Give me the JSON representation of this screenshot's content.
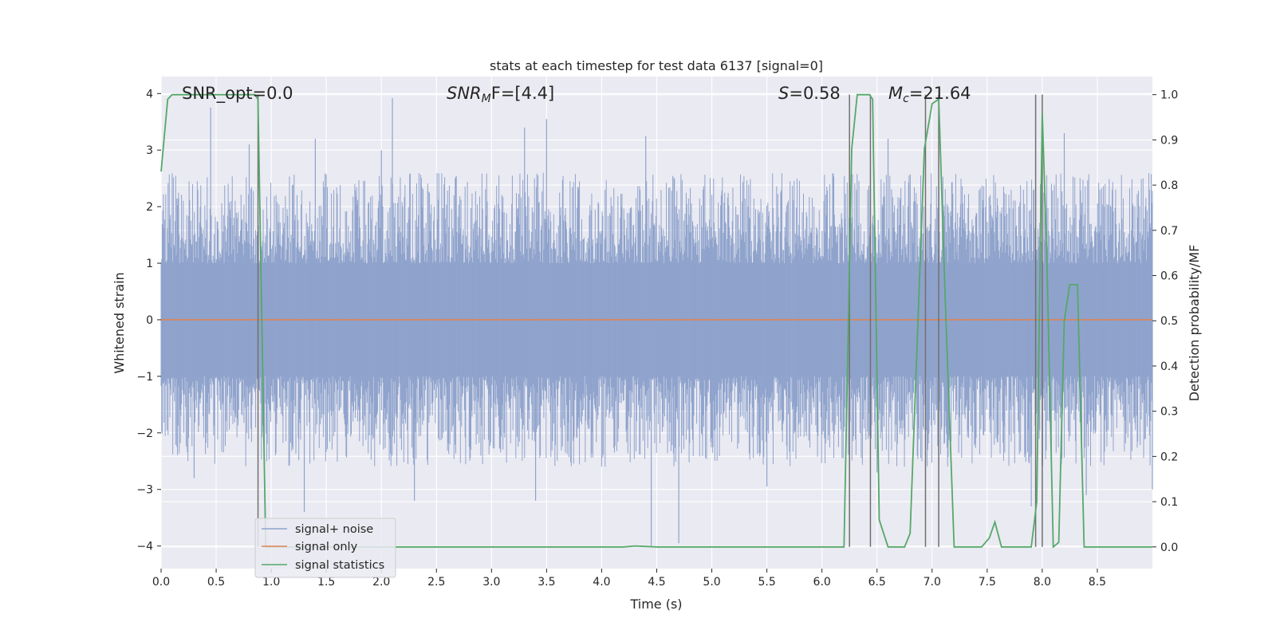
{
  "chart_data": {
    "type": "line",
    "title": "stats at each timestep for test data 6137 [signal=0]",
    "xlabel": "Time (s)",
    "ylabel": "Whitened strain",
    "y2label": "Detection probability/MF",
    "xlim": [
      0,
      9.0
    ],
    "ylim": [
      -4.4,
      4.3
    ],
    "y2lim": [
      -0.048,
      1.04
    ],
    "x_ticks": [
      0.0,
      0.5,
      1.0,
      1.5,
      2.0,
      2.5,
      3.0,
      3.5,
      4.0,
      4.5,
      5.0,
      5.5,
      6.0,
      6.5,
      7.0,
      7.5,
      8.0,
      8.5
    ],
    "x_tick_labels": [
      "0.0",
      "0.5",
      "1.0",
      "1.5",
      "2.0",
      "2.5",
      "3.0",
      "3.5",
      "4.0",
      "4.5",
      "5.0",
      "5.5",
      "6.0",
      "6.5",
      "7.0",
      "7.5",
      "8.0",
      "8.5"
    ],
    "y_ticks": [
      4,
      3,
      2,
      1,
      0,
      -1,
      -2,
      -3,
      -4
    ],
    "y_tick_labels": [
      "4",
      "3",
      "2",
      "1",
      "0",
      "−1",
      "−2",
      "−3",
      "−4"
    ],
    "y2_ticks": [
      1.0,
      0.9,
      0.8,
      0.7,
      0.6,
      0.5,
      0.4,
      0.3,
      0.2,
      0.1,
      0.0
    ],
    "y2_tick_labels": [
      "1.0",
      "0.9",
      "0.8",
      "0.7",
      "0.6",
      "0.5",
      "0.4",
      "0.3",
      "0.2",
      "0.1",
      "0.0"
    ],
    "grid": true,
    "legend_position": "lower-left",
    "annotations": {
      "snr_opt": "SNR_opt=0.0",
      "snr_mf_main": "SNR",
      "snr_mf_sub": "M",
      "snr_mf_rest": "F=[4.4]",
      "s_italic": "S",
      "s_rest": "=0.58",
      "mc_main": "M",
      "mc_sub": "c",
      "mc_rest": "=21.64"
    },
    "series": [
      {
        "name": "signal+ noise",
        "color": "#8fa3cc",
        "note_envelope": "dense noise trace, values within roughly ±4 whitened strain units",
        "spikes": [
          [
            0.45,
            3.75
          ],
          [
            0.8,
            3.1
          ],
          [
            1.4,
            3.2
          ],
          [
            2.1,
            3.92
          ],
          [
            2.0,
            3.0
          ],
          [
            3.3,
            3.4
          ],
          [
            3.5,
            3.55
          ],
          [
            4.4,
            3.25
          ],
          [
            6.6,
            3.2
          ],
          [
            8.2,
            3.3
          ],
          [
            0.3,
            -2.8
          ],
          [
            1.3,
            -3.4
          ],
          [
            2.3,
            -3.2
          ],
          [
            3.4,
            -3.2
          ],
          [
            4.45,
            -4.0
          ],
          [
            4.7,
            -3.95
          ],
          [
            5.5,
            -2.95
          ],
          [
            6.5,
            -2.7
          ],
          [
            7.9,
            -3.3
          ],
          [
            8.4,
            -3.1
          ],
          [
            9.0,
            -3.0
          ]
        ]
      },
      {
        "name": "signal only",
        "color": "#dd8452",
        "constant": 0.0
      },
      {
        "name": "signal statistics",
        "color": "#55a868",
        "axis": "right",
        "x": [
          0.0,
          0.06,
          0.1,
          0.2,
          0.5,
          0.85,
          0.88,
          0.95,
          0.96,
          1.0,
          4.2,
          4.3,
          4.5,
          6.2,
          6.27,
          6.32,
          6.43,
          6.46,
          6.52,
          6.6,
          6.75,
          6.8,
          6.93,
          7.0,
          7.06,
          7.12,
          7.2,
          7.3,
          7.45,
          7.52,
          7.57,
          7.63,
          7.9,
          7.95,
          8.0,
          8.04,
          8.1,
          8.15,
          8.2,
          8.25,
          8.32,
          8.38,
          8.45,
          9.0
        ],
        "y": [
          0.83,
          0.99,
          1.0,
          1.0,
          1.0,
          1.0,
          0.99,
          0.0,
          0.0,
          0.0,
          0.0,
          0.002,
          0.0,
          0.0,
          0.88,
          1.0,
          1.0,
          0.99,
          0.06,
          0.0,
          0.0,
          0.03,
          0.88,
          0.98,
          0.99,
          0.54,
          0.0,
          0.0,
          0.0,
          0.02,
          0.055,
          0.0,
          0.0,
          0.1,
          0.96,
          0.66,
          0.0,
          0.01,
          0.5,
          0.58,
          0.58,
          0.0,
          0.0,
          0.0
        ]
      }
    ],
    "vertical_markers": {
      "color": "#707070",
      "x": [
        0.88,
        6.25,
        6.44,
        6.94,
        7.06,
        7.94,
        8.0
      ]
    }
  }
}
